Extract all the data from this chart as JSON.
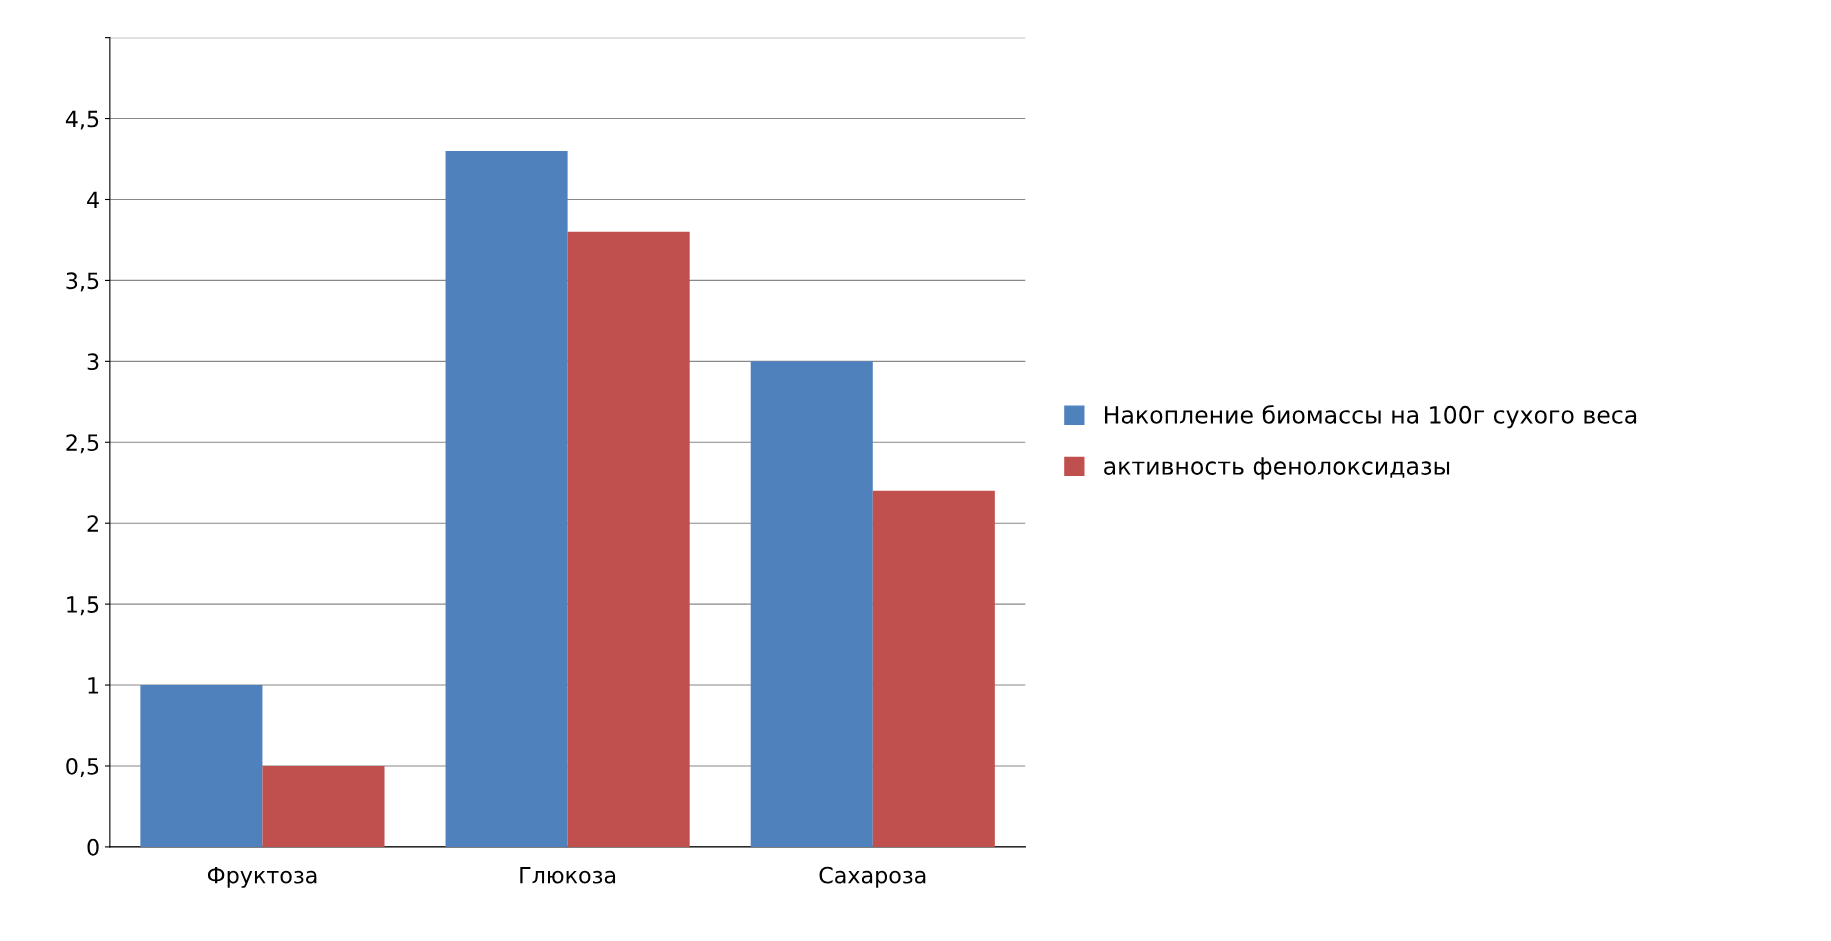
{
  "chart_data": {
    "type": "bar",
    "categories": [
      "Фруктоза",
      "Глюкоза",
      "Сахароза"
    ],
    "series": [
      {
        "name": "Накопление биомассы на 100г сухого веса",
        "color": "#4f81bd",
        "values": [
          1.0,
          4.3,
          3.0
        ]
      },
      {
        "name": "активность фенолоксидазы",
        "color": "#c0504d",
        "values": [
          0.5,
          3.8,
          2.2
        ]
      }
    ],
    "ylim": [
      0,
      5
    ],
    "yticks": [
      0,
      {
        "value": 0.5,
        "label": "0,5"
      },
      1,
      {
        "value": 1.5,
        "label": "1,5"
      },
      2,
      {
        "value": 2.5,
        "label": "2,5"
      },
      3,
      {
        "value": 3.5,
        "label": "3,5"
      },
      4,
      {
        "value": 4.5,
        "label": "4,5"
      },
      {
        "value": 5,
        "label": null
      }
    ],
    "grid": "y",
    "legend": "right"
  }
}
